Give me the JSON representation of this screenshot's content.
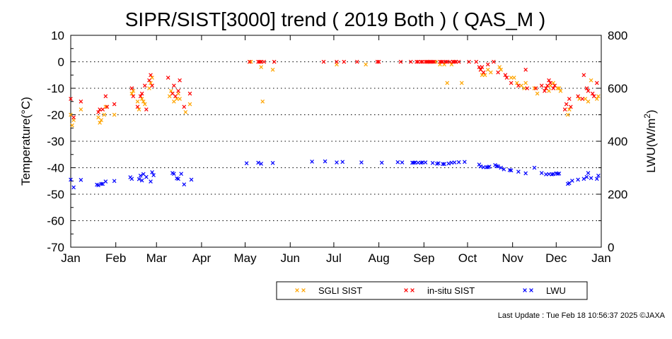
{
  "chart_data": {
    "type": "scatter",
    "title": "SIPR/SIST[3000] trend ( 2019 Both ) ( QAS_M )",
    "ylabel": "Temperature(°C)",
    "y2label_prefix": "LWU(W/m",
    "y2label_sup": "2",
    "y2label_suffix": ")",
    "ylim": [
      -70,
      10
    ],
    "y2lim": [
      0,
      800
    ],
    "xlim": [
      1,
      366
    ],
    "y_ticks": [
      10,
      0,
      -10,
      -20,
      -30,
      -40,
      -50,
      -60,
      -70
    ],
    "y_tick_labels": [
      "10",
      "0",
      "-10",
      "-20",
      "-30",
      "-40",
      "-50",
      "-60",
      "-70"
    ],
    "y2_ticks": [
      800,
      600,
      400,
      200,
      0
    ],
    "y2_tick_labels": [
      "800",
      "600",
      "400",
      "200",
      "0"
    ],
    "x_ticks": [
      1,
      32,
      60,
      91,
      121,
      152,
      182,
      213,
      244,
      274,
      305,
      335,
      366
    ],
    "x_tick_labels": [
      "Jan",
      "Feb",
      "Mar",
      "Apr",
      "May",
      "Jun",
      "Jul",
      "Aug",
      "Sep",
      "Oct",
      "Nov",
      "Dec",
      "Jan"
    ],
    "grid": "dotted horizontal",
    "legend_position": "bottom-right",
    "series": [
      {
        "name": "SGLI SIST",
        "axis": "left",
        "color": "#ffa500",
        "marker": "x",
        "points": [
          [
            1,
            -20
          ],
          [
            2,
            -24
          ],
          [
            3,
            -22
          ],
          [
            8,
            -18
          ],
          [
            20,
            -21
          ],
          [
            21,
            -23
          ],
          [
            22,
            -22
          ],
          [
            24,
            -20
          ],
          [
            25,
            -17
          ],
          [
            31,
            -20
          ],
          [
            43,
            -12
          ],
          [
            44,
            -11
          ],
          [
            47,
            -15
          ],
          [
            48,
            -18
          ],
          [
            50,
            -14
          ],
          [
            51,
            -15
          ],
          [
            52,
            -16
          ],
          [
            55,
            -10
          ],
          [
            56,
            -8
          ],
          [
            57,
            -6
          ],
          [
            69,
            -13
          ],
          [
            70,
            -11
          ],
          [
            72,
            -15
          ],
          [
            74,
            -14
          ],
          [
            75,
            -12
          ],
          [
            76,
            -14
          ],
          [
            80,
            -19
          ],
          [
            83,
            -16
          ],
          [
            125,
            0
          ],
          [
            132,
            -2
          ],
          [
            133,
            -15
          ],
          [
            140,
            -3
          ],
          [
            184,
            -1
          ],
          [
            204,
            -1
          ],
          [
            246,
            0
          ],
          [
            248,
            0
          ],
          [
            252,
            0
          ],
          [
            255,
            -1
          ],
          [
            258,
            -1
          ],
          [
            260,
            -8
          ],
          [
            263,
            -1
          ],
          [
            264,
            0
          ],
          [
            270,
            -8
          ],
          [
            283,
            -3
          ],
          [
            284,
            -5
          ],
          [
            286,
            -5
          ],
          [
            288,
            -3
          ],
          [
            290,
            -4
          ],
          [
            296,
            -2
          ],
          [
            297,
            -3
          ],
          [
            304,
            -6
          ],
          [
            306,
            -6
          ],
          [
            308,
            -8
          ],
          [
            311,
            -9
          ],
          [
            313,
            -10
          ],
          [
            314,
            -8
          ],
          [
            320,
            -10
          ],
          [
            322,
            -12
          ],
          [
            328,
            -10
          ],
          [
            330,
            -11
          ],
          [
            331,
            -9
          ],
          [
            333,
            -8
          ],
          [
            336,
            -10
          ],
          [
            337,
            -10
          ],
          [
            338,
            -11
          ],
          [
            343,
            -20
          ],
          [
            344,
            -18
          ],
          [
            351,
            -14
          ],
          [
            355,
            -14
          ],
          [
            357,
            -15
          ],
          [
            359,
            -7
          ],
          [
            363,
            -14
          ],
          [
            364,
            -13
          ]
        ]
      },
      {
        "name": "in-situ SIST",
        "axis": "left",
        "color": "#ff0000",
        "marker": "x",
        "points": [
          [
            1,
            -14
          ],
          [
            3,
            -21
          ],
          [
            8,
            -15
          ],
          [
            20,
            -19
          ],
          [
            21,
            -18
          ],
          [
            23,
            -18
          ],
          [
            25,
            -13
          ],
          [
            26,
            -17
          ],
          [
            31,
            -16
          ],
          [
            43,
            -10
          ],
          [
            44,
            -13
          ],
          [
            47,
            -17
          ],
          [
            49,
            -13
          ],
          [
            50,
            -12
          ],
          [
            52,
            -9
          ],
          [
            53,
            -18
          ],
          [
            55,
            -7
          ],
          [
            56,
            -5
          ],
          [
            57,
            -9
          ],
          [
            68,
            -6
          ],
          [
            71,
            -12
          ],
          [
            72,
            -9
          ],
          [
            73,
            -13
          ],
          [
            75,
            -11
          ],
          [
            76,
            -7
          ],
          [
            79,
            -17
          ],
          [
            83,
            -12
          ],
          [
            124,
            0
          ],
          [
            130,
            0
          ],
          [
            131,
            0
          ],
          [
            132,
            0
          ],
          [
            134,
            0
          ],
          [
            141,
            0
          ],
          [
            175,
            0
          ],
          [
            184,
            0
          ],
          [
            189,
            0
          ],
          [
            198,
            0
          ],
          [
            212,
            0
          ],
          [
            213,
            0
          ],
          [
            228,
            0
          ],
          [
            235,
            0
          ],
          [
            239,
            0
          ],
          [
            240,
            0
          ],
          [
            242,
            0
          ],
          [
            243,
            0
          ],
          [
            245,
            0
          ],
          [
            246,
            0
          ],
          [
            247,
            0
          ],
          [
            248,
            0
          ],
          [
            249,
            0
          ],
          [
            250,
            0
          ],
          [
            251,
            0
          ],
          [
            255,
            0
          ],
          [
            256,
            0
          ],
          [
            257,
            0
          ],
          [
            259,
            0
          ],
          [
            260,
            0
          ],
          [
            262,
            0
          ],
          [
            264,
            0
          ],
          [
            265,
            0
          ],
          [
            266,
            0
          ],
          [
            268,
            0
          ],
          [
            275,
            0
          ],
          [
            280,
            0
          ],
          [
            282,
            -2
          ],
          [
            283,
            -3
          ],
          [
            284,
            -2
          ],
          [
            285,
            -4
          ],
          [
            288,
            -1
          ],
          [
            292,
            0
          ],
          [
            295,
            -4
          ],
          [
            300,
            -5
          ],
          [
            301,
            -6
          ],
          [
            304,
            -8
          ],
          [
            309,
            -9
          ],
          [
            314,
            -3
          ],
          [
            315,
            -10
          ],
          [
            321,
            -10
          ],
          [
            325,
            -9
          ],
          [
            327,
            -11
          ],
          [
            328,
            -10
          ],
          [
            329,
            -9
          ],
          [
            330,
            -7
          ],
          [
            331,
            -8
          ],
          [
            333,
            -10
          ],
          [
            334,
            -9
          ],
          [
            341,
            -18
          ],
          [
            342,
            -16
          ],
          [
            344,
            -14
          ],
          [
            345,
            -17
          ],
          [
            350,
            -13
          ],
          [
            353,
            -14
          ],
          [
            354,
            -5
          ],
          [
            356,
            -10
          ],
          [
            357,
            -11
          ],
          [
            360,
            -12
          ],
          [
            361,
            -13
          ],
          [
            363,
            -8
          ]
        ]
      },
      {
        "name": "LWU",
        "axis": "right",
        "color": "#0000ff",
        "marker": "x",
        "points": [
          [
            1,
            255
          ],
          [
            3,
            226
          ],
          [
            8,
            254
          ],
          [
            19,
            236
          ],
          [
            20,
            234
          ],
          [
            22,
            239
          ],
          [
            23,
            239
          ],
          [
            25,
            248
          ],
          [
            31,
            250
          ],
          [
            42,
            264
          ],
          [
            43,
            258
          ],
          [
            48,
            257
          ],
          [
            49,
            270
          ],
          [
            50,
            252
          ],
          [
            51,
            276
          ],
          [
            53,
            265
          ],
          [
            56,
            248
          ],
          [
            57,
            283
          ],
          [
            58,
            272
          ],
          [
            71,
            280
          ],
          [
            72,
            277
          ],
          [
            74,
            260
          ],
          [
            75,
            258
          ],
          [
            77,
            277
          ],
          [
            79,
            237
          ],
          [
            84,
            255
          ],
          [
            122,
            317
          ],
          [
            130,
            319
          ],
          [
            132,
            315
          ],
          [
            140,
            318
          ],
          [
            167,
            323
          ],
          [
            176,
            324
          ],
          [
            184,
            320
          ],
          [
            188,
            322
          ],
          [
            201,
            320
          ],
          [
            215,
            319
          ],
          [
            226,
            321
          ],
          [
            229,
            320
          ],
          [
            236,
            319
          ],
          [
            237,
            319
          ],
          [
            238,
            320
          ],
          [
            240,
            319
          ],
          [
            242,
            319
          ],
          [
            243,
            320
          ],
          [
            245,
            320
          ],
          [
            250,
            318
          ],
          [
            253,
            315
          ],
          [
            254,
            317
          ],
          [
            257,
            314
          ],
          [
            258,
            314
          ],
          [
            261,
            316
          ],
          [
            263,
            319
          ],
          [
            265,
            320
          ],
          [
            268,
            321
          ],
          [
            272,
            322
          ],
          [
            282,
            312
          ],
          [
            283,
            305
          ],
          [
            285,
            302
          ],
          [
            287,
            302
          ],
          [
            288,
            302
          ],
          [
            289,
            304
          ],
          [
            293,
            310
          ],
          [
            294,
            306
          ],
          [
            295,
            305
          ],
          [
            297,
            300
          ],
          [
            299,
            294
          ],
          [
            303,
            291
          ],
          [
            304,
            290
          ],
          [
            309,
            285
          ],
          [
            314,
            279
          ],
          [
            320,
            300
          ],
          [
            325,
            280
          ],
          [
            328,
            275
          ],
          [
            330,
            276
          ],
          [
            332,
            275
          ],
          [
            333,
            276
          ],
          [
            335,
            279
          ],
          [
            336,
            277
          ],
          [
            337,
            278
          ],
          [
            343,
            239
          ],
          [
            344,
            242
          ],
          [
            346,
            251
          ],
          [
            350,
            255
          ],
          [
            354,
            258
          ],
          [
            356,
            265
          ],
          [
            357,
            280
          ],
          [
            359,
            261
          ],
          [
            363,
            258
          ],
          [
            364,
            270
          ]
        ]
      }
    ]
  },
  "footer": {
    "last_update": "Last Update : Tue Feb 18 10:56:37 2025  ©JAXA"
  }
}
